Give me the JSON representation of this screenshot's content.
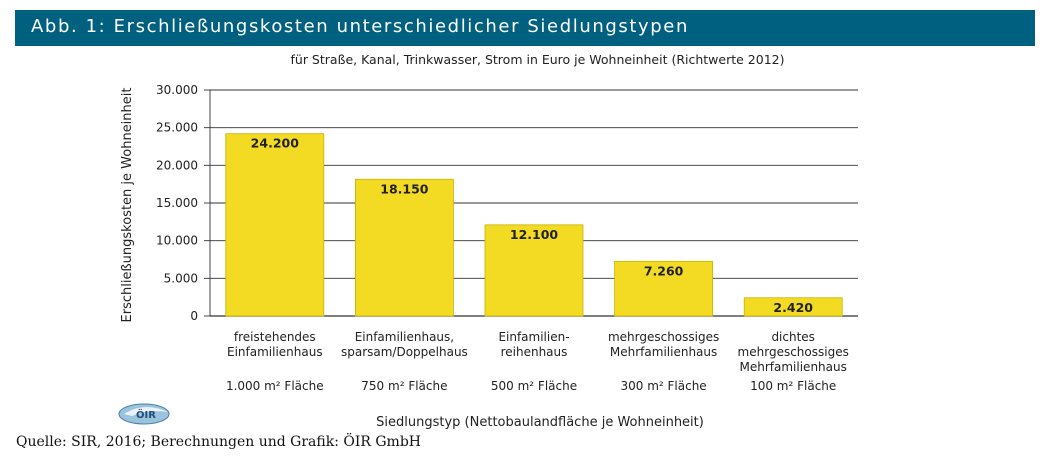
{
  "header": {
    "title": "Abb. 1: Erschließungskosten unterschiedlicher Siedlungstypen"
  },
  "colors": {
    "header_bg": "#006080",
    "bar": "#f2db22",
    "bar_stroke": "#c9b200",
    "grid": "#333333"
  },
  "logo": {
    "icon": "oir-logo-icon"
  },
  "source": "Quelle: SIR, 2016; Berechnungen und Grafik: ÖIR GmbH",
  "chart_data": {
    "type": "bar",
    "subtitle": "für Straße, Kanal, Trinkwasser, Strom in Euro je Wohneinheit (Richtwerte 2012)",
    "ylabel": "Erschließungskosten je Wohneinheit",
    "xlabel": "Siedlungstyp (Nettobaulandfläche je Wohneinheit)",
    "ylim": [
      0,
      30000
    ],
    "yticks": [
      0,
      5000,
      10000,
      15000,
      20000,
      25000,
      30000
    ],
    "ytick_labels": [
      "0",
      "5.000",
      "10.000",
      "15.000",
      "20.000",
      "25.000",
      "30.000"
    ],
    "grid": true,
    "categories": [
      [
        "freistehendes",
        "Einfamilienhaus"
      ],
      [
        "Einfamilienhaus,",
        "sparsam/Doppelhaus"
      ],
      [
        "Einfamilien-",
        "reihenhaus"
      ],
      [
        "mehrgeschossiges",
        "Mehrfamilienhaus"
      ],
      [
        "dichtes",
        "mehrgeschossiges",
        "Mehrfamilienhaus"
      ]
    ],
    "areas": [
      "1.000 m² Fläche",
      "750 m² Fläche",
      "500 m² Fläche",
      "300 m² Fläche",
      "100 m² Fläche"
    ],
    "values": [
      24200,
      18150,
      12100,
      7260,
      2420
    ],
    "value_labels": [
      "24.200",
      "18.150",
      "12.100",
      "7.260",
      "2.420"
    ]
  }
}
